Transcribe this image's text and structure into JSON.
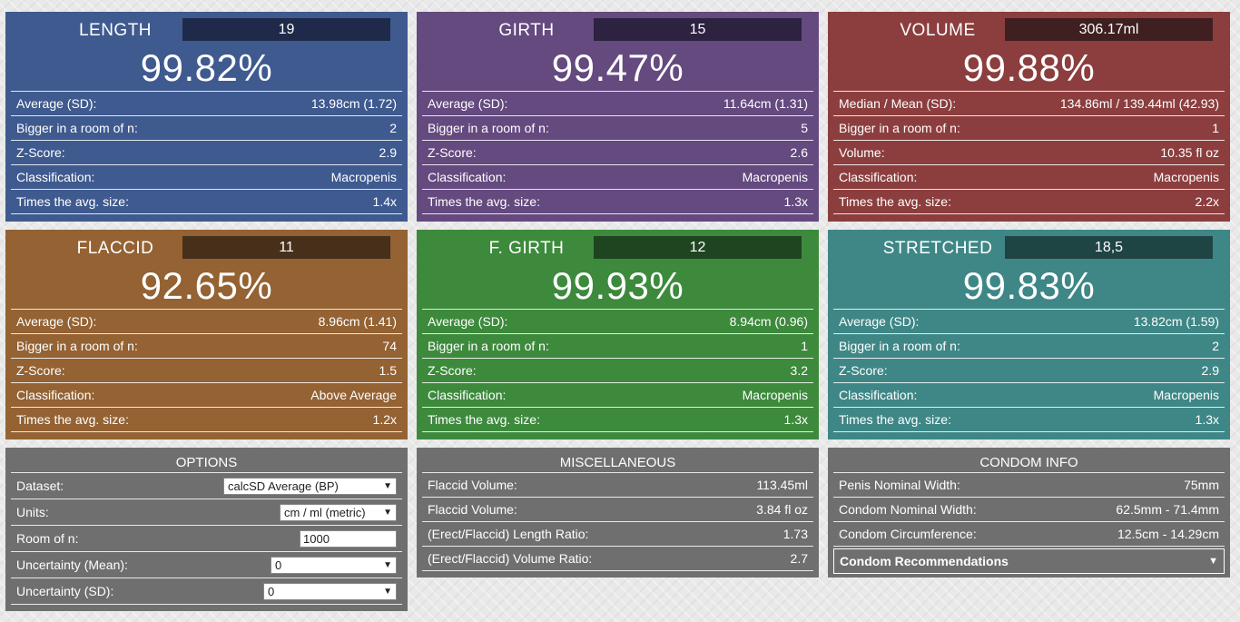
{
  "cards": {
    "length": {
      "title": "LENGTH",
      "input": "19",
      "percent": "99.82%",
      "rows": [
        {
          "label": "Average (SD):",
          "value": "13.98cm (1.72)"
        },
        {
          "label": "Bigger in a room of n:",
          "value": "2"
        },
        {
          "label": "Z-Score:",
          "value": "2.9"
        },
        {
          "label": "Classification:",
          "value": "Macropenis"
        },
        {
          "label": "Times the avg. size:",
          "value": "1.4x"
        }
      ]
    },
    "girth": {
      "title": "GIRTH",
      "input": "15",
      "percent": "99.47%",
      "rows": [
        {
          "label": "Average (SD):",
          "value": "11.64cm (1.31)"
        },
        {
          "label": "Bigger in a room of n:",
          "value": "5"
        },
        {
          "label": "Z-Score:",
          "value": "2.6"
        },
        {
          "label": "Classification:",
          "value": "Macropenis"
        },
        {
          "label": "Times the avg. size:",
          "value": "1.3x"
        }
      ]
    },
    "volume": {
      "title": "VOLUME",
      "input": "306.17ml",
      "percent": "99.88%",
      "rows": [
        {
          "label": "Median / Mean (SD):",
          "value": "134.86ml / 139.44ml (42.93)"
        },
        {
          "label": "Bigger in a room of n:",
          "value": "1"
        },
        {
          "label": "Volume:",
          "value": "10.35 fl oz"
        },
        {
          "label": "Classification:",
          "value": "Macropenis"
        },
        {
          "label": "Times the avg. size:",
          "value": "2.2x"
        }
      ]
    },
    "flaccid": {
      "title": "FLACCID",
      "input": "11",
      "percent": "92.65%",
      "rows": [
        {
          "label": "Average (SD):",
          "value": "8.96cm (1.41)"
        },
        {
          "label": "Bigger in a room of n:",
          "value": "74"
        },
        {
          "label": "Z-Score:",
          "value": "1.5"
        },
        {
          "label": "Classification:",
          "value": "Above Average"
        },
        {
          "label": "Times the avg. size:",
          "value": "1.2x"
        }
      ]
    },
    "fgirth": {
      "title": "F. GIRTH",
      "input": "12",
      "percent": "99.93%",
      "rows": [
        {
          "label": "Average (SD):",
          "value": "8.94cm (0.96)"
        },
        {
          "label": "Bigger in a room of n:",
          "value": "1"
        },
        {
          "label": "Z-Score:",
          "value": "3.2"
        },
        {
          "label": "Classification:",
          "value": "Macropenis"
        },
        {
          "label": "Times the avg. size:",
          "value": "1.3x"
        }
      ]
    },
    "stretched": {
      "title": "STRETCHED",
      "input": "18,5",
      "percent": "99.83%",
      "rows": [
        {
          "label": "Average (SD):",
          "value": "13.82cm (1.59)"
        },
        {
          "label": "Bigger in a room of n:",
          "value": "2"
        },
        {
          "label": "Z-Score:",
          "value": "2.9"
        },
        {
          "label": "Classification:",
          "value": "Macropenis"
        },
        {
          "label": "Times the avg. size:",
          "value": "1.3x"
        }
      ]
    }
  },
  "options": {
    "title": "OPTIONS",
    "dataset_label": "Dataset:",
    "dataset_value": "calcSD Average (BP)",
    "units_label": "Units:",
    "units_value": "cm / ml (metric)",
    "room_label": "Room of n:",
    "room_value": "1000",
    "unc_mean_label": "Uncertainty (Mean):",
    "unc_mean_value": "0",
    "unc_sd_label": "Uncertainty (SD):",
    "unc_sd_value": "0"
  },
  "misc": {
    "title": "MISCELLANEOUS",
    "rows": [
      {
        "label": "Flaccid Volume:",
        "value": "113.45ml"
      },
      {
        "label": "Flaccid Volume:",
        "value": "3.84 fl oz"
      },
      {
        "label": "(Erect/Flaccid) Length Ratio:",
        "value": "1.73"
      },
      {
        "label": "(Erect/Flaccid) Volume Ratio:",
        "value": "2.7"
      }
    ]
  },
  "condom": {
    "title": "CONDOM INFO",
    "rows": [
      {
        "label": "Penis Nominal Width:",
        "value": "75mm"
      },
      {
        "label": "Condom Nominal Width:",
        "value": "62.5mm - 71.4mm"
      },
      {
        "label": "Condom Circumference:",
        "value": "12.5cm - 14.29cm"
      }
    ],
    "recommendations_label": "Condom Recommendations"
  },
  "colors": {
    "length": "#3f5a8f",
    "girth": "#644a7f",
    "volume": "#8c3e3e",
    "flaccid": "#946233",
    "fgirth": "#3d8a3d",
    "stretched": "#3f8787",
    "panel": "#6f6f6f"
  }
}
